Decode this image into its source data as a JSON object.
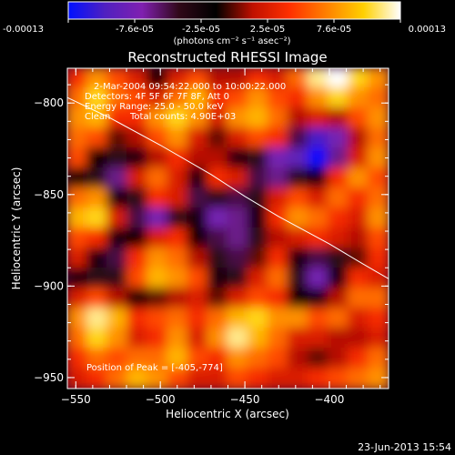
{
  "chart_data": {
    "type": "heatmap",
    "title": "Reconstructed RHESSI Image",
    "xlabel": "Heliocentric X (arcsec)",
    "ylabel": "Heliocentric Y (arcsec)",
    "xlim": [
      -555,
      -365
    ],
    "ylim": [
      -956,
      -781
    ],
    "x_ticks": [
      -550,
      -500,
      -450,
      -400
    ],
    "y_ticks": [
      -800,
      -850,
      -900,
      -950
    ],
    "colorbar": {
      "range": [
        -0.00013,
        0.00013
      ],
      "tick_labels": [
        "-0.00013",
        "-7.6e-05",
        "-2.5e-05",
        "2.5e-05",
        "7.6e-05",
        "0.00013"
      ],
      "units_label": "(photons cm⁻² s⁻¹ asec⁻²)",
      "colors": [
        "#0010ff",
        "#5020c0",
        "#8020b0",
        "#300818",
        "#000000",
        "#c01000",
        "#ff3000",
        "#ff8000",
        "#ffd000",
        "#ffffff"
      ]
    },
    "annotations": [
      "2-Mar-2004 09:54:22.000 to 10:00:22.000",
      "Detectors: 4F 5F 6F 7F 8F, Att 0",
      "Energy Range: 25.0 - 50.0 keV",
      "Clean",
      "Total counts: 4.90E+03"
    ],
    "peak_label": "Position of Peak = [-405,-774]",
    "limb_curve": {
      "x": [
        -555,
        -530,
        -500,
        -470,
        -450,
        -430,
        -400,
        -380,
        -365
      ],
      "y": [
        -797,
        -808,
        -823,
        -839,
        -851,
        -862,
        -877,
        -888,
        -896
      ]
    },
    "grid": [
      [
        0.3,
        0.6,
        0.4,
        0.2,
        -0.1,
        0.2,
        0.4,
        0.1,
        0.1,
        0.3,
        0.2,
        0.5,
        0.9,
        1.0,
        0.8,
        0.6
      ],
      [
        0.5,
        0.8,
        0.5,
        0.4,
        0.2,
        0.5,
        0.7,
        0.3,
        0.4,
        0.6,
        0.4,
        0.3,
        0.6,
        0.8,
        0.6,
        0.5
      ],
      [
        0.6,
        0.7,
        0.3,
        0.3,
        0.6,
        0.8,
        0.6,
        0.2,
        0.6,
        0.7,
        0.5,
        0.1,
        0.2,
        0.1,
        0.4,
        0.6
      ],
      [
        0.5,
        0.4,
        0.0,
        0.1,
        0.4,
        0.6,
        0.2,
        0.0,
        0.2,
        0.4,
        0.3,
        -0.4,
        -0.8,
        -0.6,
        0.1,
        0.5
      ],
      [
        0.4,
        -0.1,
        -0.3,
        -0.2,
        0.1,
        0.3,
        0.1,
        0.1,
        -0.2,
        -0.3,
        -0.6,
        -0.7,
        -1.0,
        -0.5,
        0.2,
        0.6
      ],
      [
        -0.1,
        -0.3,
        -0.5,
        0.2,
        0.5,
        0.2,
        -0.2,
        0.3,
        0.2,
        -0.4,
        -0.5,
        -0.3,
        -0.2,
        0.3,
        0.6,
        0.4
      ],
      [
        0.5,
        0.6,
        -0.2,
        -0.3,
        0.3,
        0.2,
        -0.4,
        -0.3,
        -0.4,
        -0.3,
        0.2,
        0.4,
        0.2,
        0.5,
        0.3,
        0.5
      ],
      [
        0.7,
        0.8,
        0.2,
        -0.4,
        -0.6,
        -0.3,
        -0.2,
        -0.6,
        -0.5,
        -0.2,
        0.3,
        0.6,
        0.5,
        0.3,
        0.2,
        0.6
      ],
      [
        0.4,
        0.3,
        -0.2,
        -0.1,
        0.2,
        0.3,
        -0.1,
        -0.4,
        -0.5,
        -0.3,
        0.1,
        0.2,
        0.3,
        0.2,
        0.1,
        0.4
      ],
      [
        0.2,
        -0.2,
        -0.4,
        0.3,
        0.6,
        0.5,
        0.1,
        -0.3,
        -0.4,
        0.0,
        0.3,
        -0.2,
        -0.4,
        -0.3,
        0.0,
        0.3
      ],
      [
        -0.2,
        -0.3,
        -0.3,
        0.4,
        0.7,
        0.6,
        0.4,
        -0.2,
        -0.3,
        0.2,
        0.5,
        -0.3,
        -0.6,
        -0.2,
        0.3,
        0.2
      ],
      [
        0.2,
        0.4,
        0.1,
        -0.1,
        0.0,
        0.1,
        0.2,
        0.0,
        0.2,
        0.4,
        0.3,
        -0.1,
        -0.2,
        0.1,
        0.5,
        0.5
      ],
      [
        0.6,
        0.9,
        0.7,
        0.3,
        0.4,
        0.5,
        0.3,
        0.5,
        0.7,
        0.8,
        0.6,
        0.6,
        0.4,
        0.5,
        0.2,
        0.3
      ],
      [
        0.5,
        0.8,
        0.6,
        0.2,
        0.3,
        0.6,
        0.2,
        0.6,
        0.9,
        0.7,
        0.5,
        0.2,
        0.2,
        0.1,
        0.1,
        0.2
      ],
      [
        0.3,
        0.5,
        0.4,
        0.5,
        0.5,
        0.7,
        0.4,
        0.3,
        0.6,
        0.5,
        0.4,
        0.1,
        0.0,
        0.1,
        0.3,
        0.5
      ],
      [
        0.2,
        0.3,
        0.5,
        0.7,
        0.6,
        0.4,
        0.2,
        0.2,
        0.4,
        0.3,
        0.2,
        0.2,
        0.3,
        0.4,
        0.5,
        0.6
      ]
    ]
  },
  "footer": {
    "date": "23-Jun-2013 15:54"
  }
}
